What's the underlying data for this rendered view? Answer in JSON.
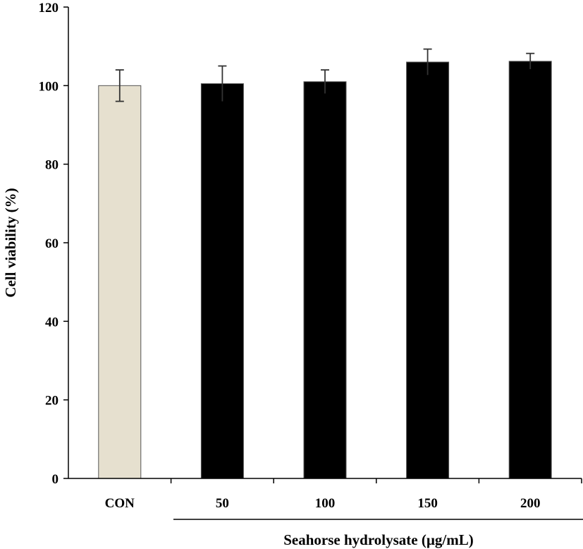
{
  "chart_data": {
    "type": "bar",
    "categories": [
      "CON",
      "50",
      "100",
      "150",
      "200"
    ],
    "values": [
      100,
      100.5,
      101,
      106,
      106.2
    ],
    "errors": [
      4,
      4.5,
      3,
      3.3,
      2
    ],
    "colors": [
      "#e6e0cf",
      "#000000",
      "#000000",
      "#000000",
      "#000000"
    ],
    "ylabel": "Cell viability (%)",
    "xlabel": "Seahorse hydrolysate (µg/mL)",
    "ylim": [
      0,
      120
    ],
    "yticks": [
      0,
      20,
      40,
      60,
      80,
      100,
      120
    ],
    "grid": false,
    "legend": "none"
  }
}
